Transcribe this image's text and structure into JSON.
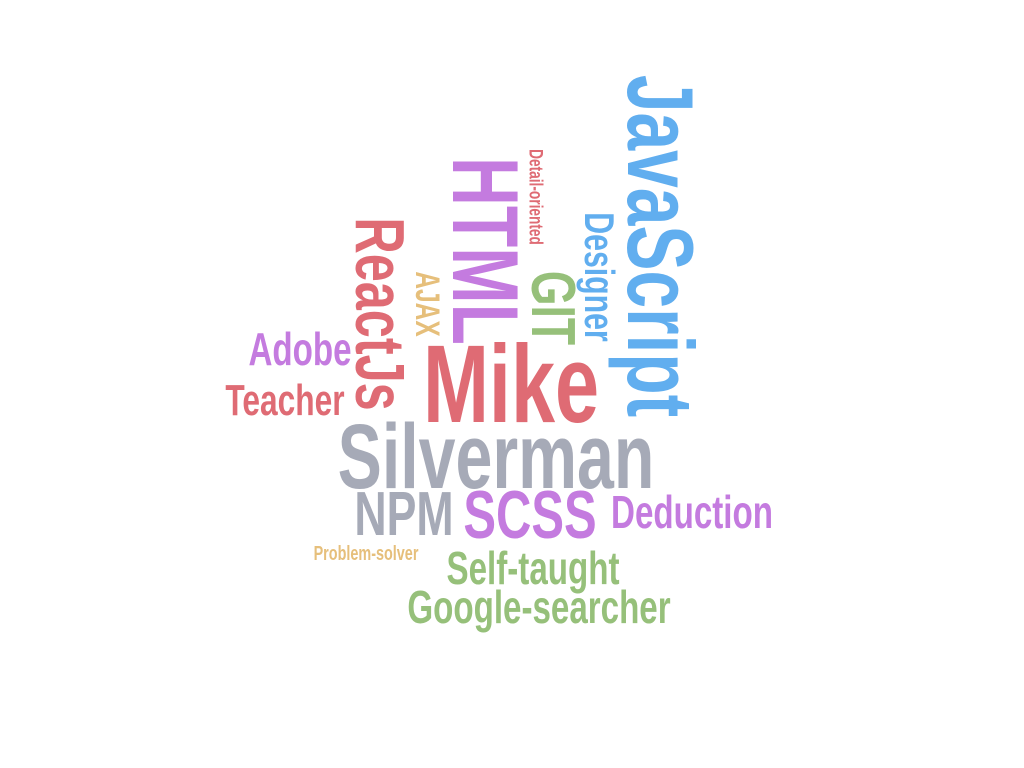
{
  "colors": {
    "red": "#df6b74",
    "blue": "#61aeef",
    "purple": "#c47bdf",
    "green": "#96c07a",
    "gray": "#a6aab7",
    "gold": "#e6bf7b"
  },
  "words": [
    {
      "id": "javascript",
      "text": "JavaScript",
      "color": "#61aeef",
      "vertical": true
    },
    {
      "id": "detail-oriented",
      "text": "Detail-oriented",
      "color": "#df6b74",
      "vertical": true
    },
    {
      "id": "designer",
      "text": "Designer",
      "color": "#61aeef",
      "vertical": true
    },
    {
      "id": "git",
      "text": "GIT",
      "color": "#96c07a",
      "vertical": true
    },
    {
      "id": "html",
      "text": "HTML",
      "color": "#c47bdf",
      "vertical": true
    },
    {
      "id": "ajax",
      "text": "AJAX",
      "color": "#e6bf7b",
      "vertical": true
    },
    {
      "id": "reactjs",
      "text": "ReactJs",
      "color": "#df6b74",
      "vertical": true
    },
    {
      "id": "adobe",
      "text": "Adobe",
      "color": "#c47bdf",
      "vertical": false
    },
    {
      "id": "teacher",
      "text": "Teacher",
      "color": "#df6b74",
      "vertical": false
    },
    {
      "id": "mike",
      "text": "Mike",
      "color": "#df6b74",
      "vertical": false
    },
    {
      "id": "silverman",
      "text": "Silverman",
      "color": "#a6aab7",
      "vertical": false
    },
    {
      "id": "npm",
      "text": "NPM",
      "color": "#a6aab7",
      "vertical": false
    },
    {
      "id": "scss",
      "text": "SCSS",
      "color": "#c47bdf",
      "vertical": false
    },
    {
      "id": "deduction",
      "text": "Deduction",
      "color": "#c47bdf",
      "vertical": false
    },
    {
      "id": "problem-solver",
      "text": "Problem-solver",
      "color": "#e6bf7b",
      "vertical": false
    },
    {
      "id": "self-taught",
      "text": "Self-taught",
      "color": "#96c07a",
      "vertical": false
    },
    {
      "id": "google-searcher",
      "text": "Google-searcher",
      "color": "#96c07a",
      "vertical": false
    }
  ]
}
